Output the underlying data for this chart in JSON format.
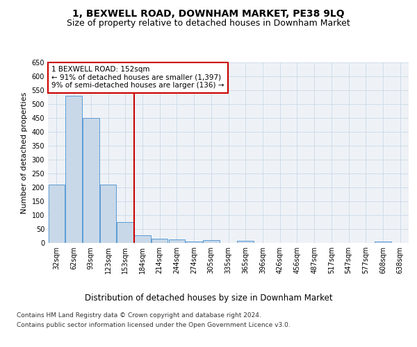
{
  "title": "1, BEXWELL ROAD, DOWNHAM MARKET, PE38 9LQ",
  "subtitle": "Size of property relative to detached houses in Downham Market",
  "xlabel": "Distribution of detached houses by size in Downham Market",
  "ylabel": "Number of detached properties",
  "categories": [
    "32sqm",
    "62sqm",
    "93sqm",
    "123sqm",
    "153sqm",
    "184sqm",
    "214sqm",
    "244sqm",
    "274sqm",
    "305sqm",
    "335sqm",
    "365sqm",
    "396sqm",
    "426sqm",
    "456sqm",
    "487sqm",
    "517sqm",
    "547sqm",
    "577sqm",
    "608sqm",
    "638sqm"
  ],
  "values": [
    210,
    530,
    450,
    210,
    75,
    27,
    15,
    12,
    5,
    10,
    0,
    8,
    0,
    0,
    0,
    0,
    0,
    0,
    0,
    6,
    0
  ],
  "bar_facecolor": "#c8d8e8",
  "bar_edgecolor": "#5b9bd5",
  "grid_color": "#d0dce8",
  "background_color": "#eef2f7",
  "vline_x_index": 4,
  "vline_color": "#cc0000",
  "annotation_text": "1 BEXWELL ROAD: 152sqm\n← 91% of detached houses are smaller (1,397)\n9% of semi-detached houses are larger (136) →",
  "annotation_box_color": "#ffffff",
  "annotation_box_edgecolor": "#cc0000",
  "ylim": [
    0,
    650
  ],
  "yticks": [
    0,
    50,
    100,
    150,
    200,
    250,
    300,
    350,
    400,
    450,
    500,
    550,
    600,
    650
  ],
  "footer_line1": "Contains HM Land Registry data © Crown copyright and database right 2024.",
  "footer_line2": "Contains public sector information licensed under the Open Government Licence v3.0.",
  "title_fontsize": 10,
  "subtitle_fontsize": 9,
  "xlabel_fontsize": 8.5,
  "ylabel_fontsize": 8,
  "tick_fontsize": 7,
  "annotation_fontsize": 7.5,
  "footer_fontsize": 6.5
}
